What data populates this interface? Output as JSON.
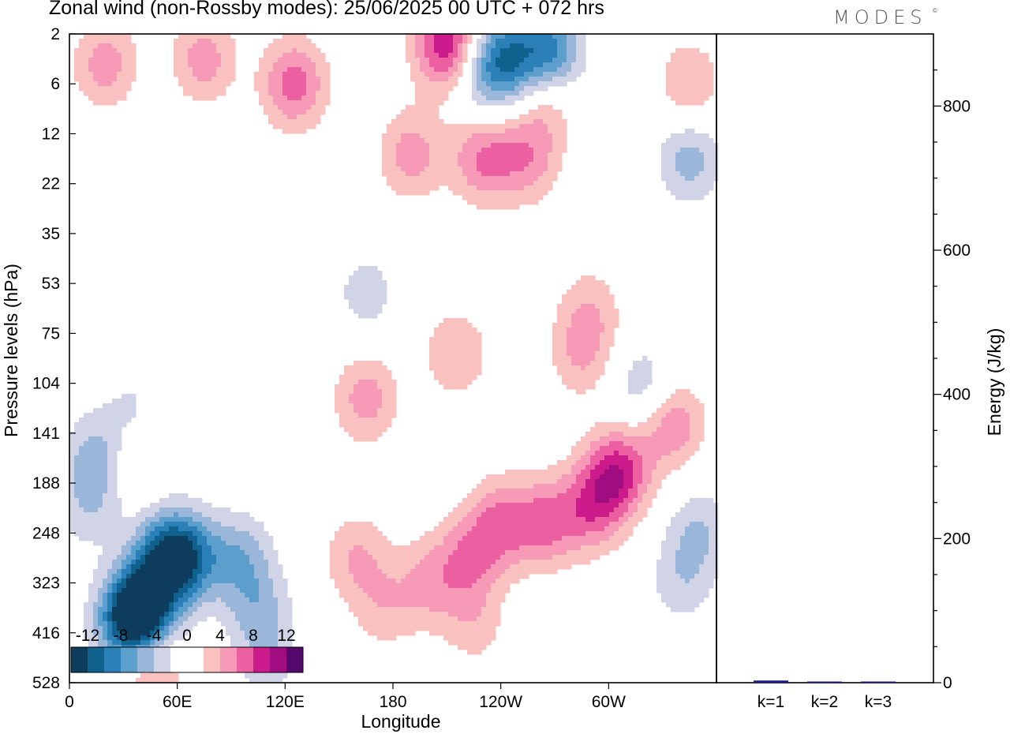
{
  "title": "Zonal wind (non-Rossby modes):  25/06/2025  00 UTC  + 072 hrs",
  "logo": {
    "text": "MODES",
    "mark": "©"
  },
  "chart_data": [
    {
      "type": "heatmap",
      "xlabel": "Longitude",
      "ylabel": "Pressure levels (hPa)",
      "x_ticks": [
        "0",
        "60E",
        "120E",
        "180",
        "120W",
        "60W"
      ],
      "y_ticks": [
        "2",
        "6",
        "12",
        "22",
        "35",
        "53",
        "75",
        "104",
        "141",
        "188",
        "248",
        "323",
        "416",
        "528"
      ],
      "xlim": [
        0,
        360
      ],
      "colorbar": {
        "labels": [
          "-12",
          "-8",
          "-4",
          "0",
          "4",
          "8",
          "12"
        ],
        "levels": [
          -14,
          -12,
          -10,
          -8,
          -6,
          -4,
          -2,
          2,
          4,
          6,
          8,
          10,
          12,
          14
        ],
        "colors": [
          "#0d3c5c",
          "#11618f",
          "#2b80b8",
          "#5c9fcc",
          "#9ab7da",
          "#d1d3e7",
          "#ffffff",
          "#ffffff",
          "#f9c2c0",
          "#f79ab8",
          "#ec5fa0",
          "#cb1b8a",
          "#a00d80",
          "#55086b"
        ]
      },
      "features": [
        {
          "lon": 40,
          "lev": 11.5,
          "value": -14
        },
        {
          "lon": 30,
          "lev": 12,
          "value": -9
        },
        {
          "lon": 55,
          "lev": 10.5,
          "value": -11
        },
        {
          "lon": 68,
          "lev": 10.5,
          "value": -6
        },
        {
          "lon": 95,
          "lev": 10.5,
          "value": -5
        },
        {
          "lon": 105,
          "lev": 11.5,
          "value": -4
        },
        {
          "lon": 110,
          "lev": 12.5,
          "value": -3
        },
        {
          "lon": 15,
          "lev": 8.5,
          "value": -5
        },
        {
          "lon": 35,
          "lev": 7.8,
          "value": -5
        },
        {
          "lon": 10,
          "lev": 9.5,
          "value": -3
        },
        {
          "lon": 210,
          "lev": 0.2,
          "value": 10
        },
        {
          "lon": 243,
          "lev": 0.5,
          "value": -8
        },
        {
          "lon": 267,
          "lev": 0.4,
          "value": -9
        },
        {
          "lon": 230,
          "lev": 0.8,
          "value": -4
        },
        {
          "lon": 125,
          "lev": 1,
          "value": 7
        },
        {
          "lon": 20,
          "lev": 0.6,
          "value": 5
        },
        {
          "lon": 75,
          "lev": 0.5,
          "value": 5
        },
        {
          "lon": 190,
          "lev": 2.4,
          "value": 5
        },
        {
          "lon": 230,
          "lev": 2.5,
          "value": 6
        },
        {
          "lon": 255,
          "lev": 2.5,
          "value": 5
        },
        {
          "lon": 265,
          "lev": 1.3,
          "value": 4
        },
        {
          "lon": 345,
          "lev": 2.5,
          "value": -5
        },
        {
          "lon": 345,
          "lev": 1,
          "value": 4
        },
        {
          "lon": 165,
          "lev": 7.3,
          "value": 5
        },
        {
          "lon": 215,
          "lev": 6.4,
          "value": 4
        },
        {
          "lon": 285,
          "lev": 6.4,
          "value": 4
        },
        {
          "lon": 320,
          "lev": 7.1,
          "value": -4
        },
        {
          "lon": 335,
          "lev": 7.8,
          "value": 6
        },
        {
          "lon": 305,
          "lev": 8.8,
          "value": 9
        },
        {
          "lon": 290,
          "lev": 9.5,
          "value": 6
        },
        {
          "lon": 265,
          "lev": 9.8,
          "value": 6
        },
        {
          "lon": 240,
          "lev": 9.8,
          "value": 6
        },
        {
          "lon": 222,
          "lev": 10.5,
          "value": 5
        },
        {
          "lon": 200,
          "lev": 11,
          "value": 4
        },
        {
          "lon": 160,
          "lev": 10.5,
          "value": 4
        },
        {
          "lon": 175,
          "lev": 11.5,
          "value": 3
        },
        {
          "lon": 225,
          "lev": 11.8,
          "value": 3
        },
        {
          "lon": 35,
          "lev": 8.2,
          "value": 5
        },
        {
          "lon": 30,
          "lev": 12.3,
          "value": 3
        },
        {
          "lon": 45,
          "lev": 12.9,
          "value": 5
        },
        {
          "lon": 350,
          "lev": 10,
          "value": -4
        },
        {
          "lon": 340,
          "lev": 11,
          "value": -3
        },
        {
          "lon": 165,
          "lev": 5.2,
          "value": -3
        },
        {
          "lon": 290,
          "lev": 5.5,
          "value": 3
        }
      ]
    },
    {
      "type": "bar",
      "categories": [
        "k=1",
        "k=2",
        "k=3"
      ],
      "values": [
        3,
        0.6,
        0.4
      ],
      "ylabel": "Energy (J/kg)",
      "ylim": [
        0,
        900
      ],
      "y_ticks": [
        0,
        200,
        400,
        600,
        800
      ],
      "bar_color": "#1a1a8a"
    }
  ]
}
